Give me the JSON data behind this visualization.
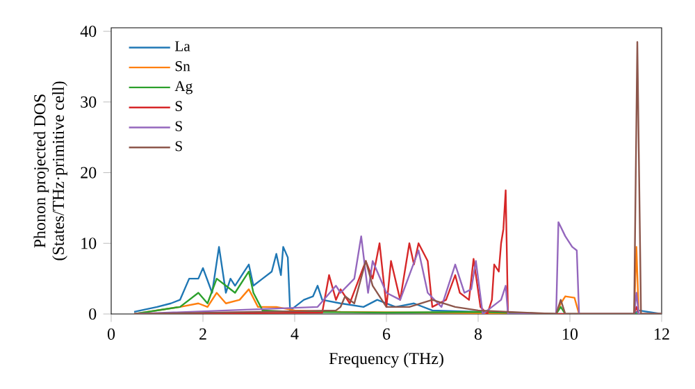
{
  "chart_data": {
    "type": "line",
    "xlabel": "Frequency (THz)",
    "ylabel": "Phonon projected DOS\n(States/THz·primitive cell)",
    "xlim": [
      0,
      12
    ],
    "ylim": [
      0,
      40.5
    ],
    "xticks": [
      0,
      2,
      4,
      6,
      8,
      10,
      12
    ],
    "yticks": [
      0,
      10,
      20,
      30,
      40
    ],
    "legend": "top left",
    "grid": false,
    "series": [
      {
        "name": "La",
        "color": "#1f77b4",
        "x": [
          0.5,
          1.0,
          1.3,
          1.5,
          1.7,
          1.9,
          2.0,
          2.2,
          2.35,
          2.5,
          2.6,
          2.7,
          2.9,
          3.0,
          3.1,
          3.3,
          3.5,
          3.6,
          3.7,
          3.75,
          3.85,
          3.9,
          4.0,
          4.2,
          4.4,
          4.5,
          4.6,
          5.0,
          5.5,
          5.8,
          6.2,
          6.6,
          7.0,
          8.0,
          8.6,
          11.4,
          11.5,
          12.0
        ],
        "values": [
          0.3,
          1,
          1.5,
          2,
          5,
          5,
          6.5,
          3,
          9.5,
          3,
          5,
          4,
          6,
          7,
          4,
          5,
          6,
          8.5,
          5.5,
          9.5,
          8,
          0.5,
          1,
          2,
          2.5,
          4,
          2,
          1.5,
          1,
          2,
          1,
          1.5,
          0.5,
          0.3,
          0,
          0,
          0.5,
          0
        ]
      },
      {
        "name": "Sn",
        "color": "#ff7f0e",
        "x": [
          0.5,
          1.5,
          1.9,
          2.1,
          2.3,
          2.5,
          2.8,
          3.0,
          3.2,
          3.6,
          4.0,
          5.0,
          7.0,
          9.7,
          9.8,
          9.9,
          10.1,
          10.2,
          11.4,
          11.45,
          11.5,
          12.0
        ],
        "values": [
          0,
          1,
          1.5,
          1,
          3,
          1.5,
          2,
          3.5,
          1,
          1,
          0.5,
          0.3,
          0.2,
          0,
          1.5,
          2.5,
          2.3,
          0,
          0,
          9.5,
          0,
          0
        ]
      },
      {
        "name": "Ag",
        "color": "#2ca02c",
        "x": [
          0.5,
          1.5,
          1.9,
          2.1,
          2.3,
          2.5,
          2.7,
          3.0,
          3.1,
          3.3,
          4.0,
          6.0,
          8.0,
          9.7,
          9.8,
          9.9,
          12.0
        ],
        "values": [
          0,
          1,
          3,
          1.5,
          5,
          4,
          3,
          6,
          3,
          0.5,
          0.3,
          0.2,
          0.3,
          0,
          1,
          0,
          0
        ]
      },
      {
        "name": "S",
        "color": "#d62728",
        "x": [
          0.5,
          4.6,
          4.75,
          4.9,
          5.0,
          5.2,
          5.55,
          5.7,
          5.85,
          6.0,
          6.1,
          6.3,
          6.5,
          6.6,
          6.7,
          6.9,
          7.0,
          7.3,
          7.5,
          7.6,
          7.8,
          7.9,
          8.05,
          8.2,
          8.3,
          8.35,
          8.45,
          8.5,
          8.55,
          8.6,
          8.65,
          11.4,
          11.45,
          11.5,
          12.0
        ],
        "values": [
          0,
          0.2,
          5.5,
          2,
          3.5,
          1.5,
          7.5,
          5,
          10,
          1,
          7.5,
          2,
          10,
          7,
          10,
          7.5,
          1,
          2,
          5.5,
          3,
          2,
          7.8,
          1,
          0,
          2,
          7,
          6,
          10,
          12,
          17.5,
          0,
          0,
          1,
          0,
          0
        ]
      },
      {
        "name": "S",
        "color": "#9467bd",
        "x": [
          0.5,
          4.5,
          4.9,
          5.0,
          5.3,
          5.45,
          5.6,
          5.7,
          6.0,
          6.3,
          6.7,
          6.9,
          7.2,
          7.5,
          7.7,
          7.85,
          7.95,
          8.1,
          8.3,
          8.5,
          8.6,
          8.65,
          9.7,
          9.75,
          9.9,
          10.05,
          10.15,
          10.2,
          11.4,
          11.45,
          11.5,
          12.0
        ],
        "values": [
          0,
          1,
          4,
          3,
          5,
          11,
          3,
          7.5,
          3,
          2,
          9,
          3,
          1,
          7,
          3,
          3.5,
          7.5,
          0,
          1,
          2,
          4,
          0,
          0,
          13,
          11,
          9.5,
          9,
          0,
          0,
          3,
          0,
          0
        ]
      },
      {
        "name": "S",
        "color": "#8c564b",
        "x": [
          0.5,
          4.9,
          5.0,
          5.1,
          5.3,
          5.55,
          5.7,
          6.0,
          6.5,
          7.0,
          7.5,
          8.0,
          9.7,
          9.8,
          9.9,
          11.4,
          11.47,
          11.55,
          12.0
        ],
        "values": [
          0,
          0.5,
          1,
          2.5,
          1.5,
          7.5,
          4,
          1,
          1,
          2,
          1,
          0.5,
          0,
          2,
          0,
          0,
          38.5,
          0,
          0
        ]
      }
    ]
  }
}
